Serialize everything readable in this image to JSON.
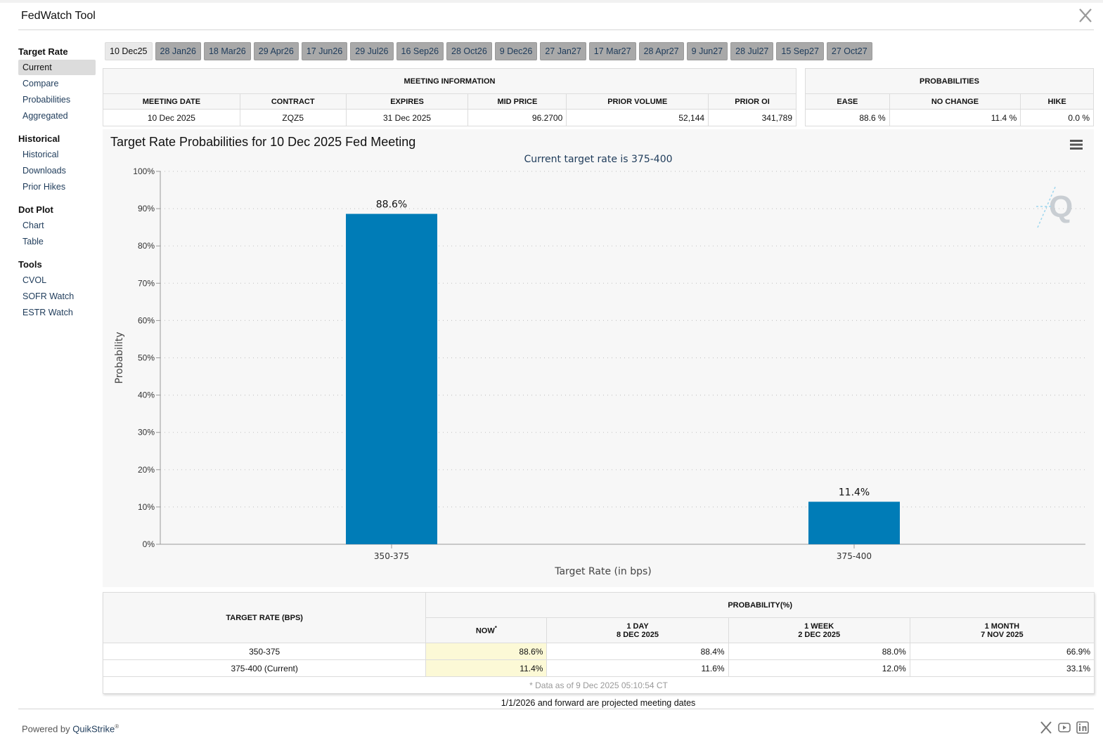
{
  "app": {
    "title": "FedWatch Tool"
  },
  "sidebar": {
    "groups": [
      {
        "heading": "Target Rate",
        "items": [
          "Current",
          "Compare",
          "Probabilities",
          "Aggregated"
        ]
      },
      {
        "heading": "Historical",
        "items": [
          "Historical",
          "Downloads",
          "Prior Hikes"
        ]
      },
      {
        "heading": "Dot Plot",
        "items": [
          "Chart",
          "Table"
        ]
      },
      {
        "heading": "Tools",
        "items": [
          "CVOL",
          "SOFR Watch",
          "ESTR Watch"
        ]
      }
    ],
    "active_item": "Current"
  },
  "tabs": [
    "10 Dec25",
    "28 Jan26",
    "18 Mar26",
    "29 Apr26",
    "17 Jun26",
    "29 Jul26",
    "16 Sep26",
    "28 Oct26",
    "9 Dec26",
    "27 Jan27",
    "17 Mar27",
    "28 Apr27",
    "9 Jun27",
    "28 Jul27",
    "15 Sep27",
    "27 Oct27"
  ],
  "meeting_info": {
    "heading": "MEETING INFORMATION",
    "columns": [
      "MEETING DATE",
      "CONTRACT",
      "EXPIRES",
      "MID PRICE",
      "PRIOR VOLUME",
      "PRIOR OI"
    ],
    "row": [
      "10 Dec 2025",
      "ZQZ5",
      "31 Dec 2025",
      "96.2700",
      "52,144",
      "341,789"
    ]
  },
  "probabilities": {
    "heading": "PROBABILITIES",
    "columns": [
      "EASE",
      "NO CHANGE",
      "HIKE"
    ],
    "row": [
      "88.6 %",
      "11.4 %",
      "0.0 %"
    ]
  },
  "chart_data": {
    "type": "bar",
    "title": "Target Rate Probabilities for 10 Dec 2025 Fed Meeting",
    "subtitle": "Current target rate is 375-400",
    "xlabel": "Target Rate (in bps)",
    "ylabel": "Probability",
    "categories": [
      "350-375",
      "375-400"
    ],
    "values": [
      88.6,
      11.4
    ],
    "data_labels": [
      "88.6%",
      "11.4%"
    ],
    "ylim": [
      0,
      100
    ],
    "yticks": [
      "0%",
      "10%",
      "20%",
      "30%",
      "40%",
      "50%",
      "60%",
      "70%",
      "80%",
      "90%",
      "100%"
    ],
    "grid": true,
    "bar_color": "#007cb7"
  },
  "prob_table": {
    "target_header": "TARGET RATE (BPS)",
    "group_header": "PROBABILITY(%)",
    "columns": [
      {
        "line1": "NOW",
        "line2": "",
        "sup": "*"
      },
      {
        "line1": "1 DAY",
        "line2": "8 DEC 2025",
        "sup": ""
      },
      {
        "line1": "1 WEEK",
        "line2": "2 DEC 2025",
        "sup": ""
      },
      {
        "line1": "1 MONTH",
        "line2": "7 NOV 2025",
        "sup": ""
      }
    ],
    "rows": [
      {
        "rate": "350-375",
        "values": [
          "88.6%",
          "88.4%",
          "88.0%",
          "66.9%"
        ]
      },
      {
        "rate": "375-400 (Current)",
        "values": [
          "11.4%",
          "11.6%",
          "12.0%",
          "33.1%"
        ]
      }
    ],
    "footnote": "* Data as of 9 Dec 2025 05:10:54 CT"
  },
  "projected_note": "1/1/2026 and forward are projected meeting dates",
  "footer": {
    "powered_by": "Powered by",
    "brand": "QuikStrike",
    "reg": "®"
  },
  "colors": {
    "accent": "#007cb7",
    "link": "#1e3b5a",
    "now_highlight": "#fcf9d6"
  }
}
